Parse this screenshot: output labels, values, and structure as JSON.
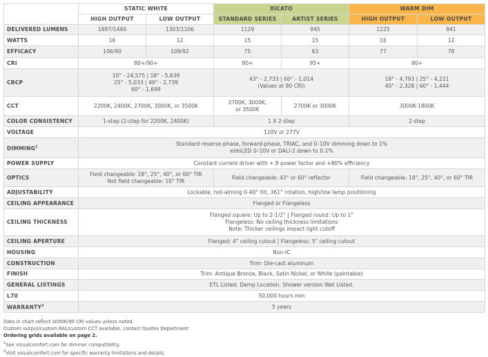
{
  "header": {
    "groups": [
      {
        "label": "STATIC WHITE",
        "color": "#ffffff"
      },
      {
        "label": "XICATO",
        "color": "#c9d48e"
      },
      {
        "label": "WARM DIM",
        "color": "#f9b54a"
      }
    ],
    "subcolumns": [
      "HIGH OUTPUT",
      "LOW OUTPUT",
      "STANDARD SERIES",
      "ARTIST SERIES",
      "HIGH OUTPUT",
      "LOW OUTPUT"
    ]
  },
  "rows": [
    {
      "label": "DELIVERED LUMENS",
      "cells": [
        {
          "t": "1697/1440",
          "s": 1
        },
        {
          "t": "1303/1106",
          "s": 1
        },
        {
          "t": "1129",
          "s": 1
        },
        {
          "t": "945",
          "s": 1
        },
        {
          "t": "1225",
          "s": 1
        },
        {
          "t": "941",
          "s": 1
        }
      ]
    },
    {
      "label": "WATTS",
      "cells": [
        {
          "t": "16",
          "s": 1
        },
        {
          "t": "12",
          "s": 1
        },
        {
          "t": "15",
          "s": 1
        },
        {
          "t": "15",
          "s": 1
        },
        {
          "t": "16",
          "s": 1
        },
        {
          "t": "12",
          "s": 1
        }
      ]
    },
    {
      "label": "EFFICACY",
      "cells": [
        {
          "t": "106/90",
          "s": 1
        },
        {
          "t": "109/92",
          "s": 1
        },
        {
          "t": "75",
          "s": 1
        },
        {
          "t": "63",
          "s": 1
        },
        {
          "t": "77",
          "s": 1
        },
        {
          "t": "78",
          "s": 1
        }
      ]
    },
    {
      "label": "CRI",
      "cells": [
        {
          "t": "80+/90+",
          "s": 2
        },
        {
          "t": "80+",
          "s": 1
        },
        {
          "t": "95+",
          "s": 1
        },
        {
          "t": "90+",
          "s": 2
        }
      ]
    },
    {
      "label": "CBCP",
      "cells": [
        {
          "t": "10° - 24,575 | 18° - 5,639\n25° - 5,033 | 40° - 2,739\n60° - 1,699",
          "s": 2
        },
        {
          "t": "43° - 2,733 | 60° - 1,014\n(Values at 80 CRI)",
          "s": 2
        },
        {
          "t": "18° - 4,793 | 25° - 4,221\n40° - 2,328 | 60° - 1,444",
          "s": 2
        }
      ]
    },
    {
      "label": "CCT",
      "cells": [
        {
          "t": "2200K, 2400K, 2700K, 3000K, or 3500K",
          "s": 2
        },
        {
          "t": "2700K, 3000K,\nor 3500K",
          "s": 1
        },
        {
          "t": "2700K or 3000K",
          "s": 1
        },
        {
          "t": "3000K-1800K",
          "s": 2
        }
      ]
    },
    {
      "label": "COLOR CONSISTENCY",
      "cells": [
        {
          "t": "1-step (2-step for 2200K, 2400K)",
          "s": 2
        },
        {
          "t": "1 X 2-step",
          "s": 2
        },
        {
          "t": "2-step",
          "s": 2
        }
      ]
    },
    {
      "label": "VOLTAGE",
      "cells": [
        {
          "t": "120V or 277V",
          "s": 6
        }
      ]
    },
    {
      "label": "DIMMING",
      "sup": "1",
      "cells": [
        {
          "t": "Standard reverse-phase, forward-phase, TRIAC, and 0–10V dimming down to 1%\neldoLED 0–10V or DALI-2 down to 0.1%",
          "s": 6
        }
      ]
    },
    {
      "label": "POWER SUPPLY",
      "cells": [
        {
          "t": "Constant current driver with +.9 power factor and +80% efficiency",
          "s": 6
        }
      ]
    },
    {
      "label": "OPTICS",
      "cells": [
        {
          "t": "Field changeable: 18°, 25°, 40°, or 60° TIR\nNot field changeable: 10° TIR",
          "s": 2
        },
        {
          "t": "Field changeable: 43° or 60° reflector",
          "s": 2
        },
        {
          "t": "Field changeable: 18°, 25°, 40°, or 60° TIR",
          "s": 2
        }
      ]
    },
    {
      "label": "ADJUSTABILITY",
      "cells": [
        {
          "t": "Lockable, hot-aiming 0-40° tilt, 361° rotation, high/low lamp positioning",
          "s": 6
        }
      ]
    },
    {
      "label": "CEILING APPEARANCE",
      "cells": [
        {
          "t": "Flanged or Flangeless",
          "s": 6
        }
      ]
    },
    {
      "label": "CEILING THICKNESS",
      "cells": [
        {
          "t": "Flanged square: Up to 2-1/2\" | Flanged round: Up to 1\"\nFlangeless: No ceiling thickness limitations\nNote: Thicker ceilings impact light cutoff",
          "s": 6
        }
      ]
    },
    {
      "label": "CEILING APERTURE",
      "cells": [
        {
          "t": "Flanged: 4\" ceiling cutout | Flangeless: 5\" ceiling cutout",
          "s": 6
        }
      ]
    },
    {
      "label": "HOUSING",
      "cells": [
        {
          "t": "Non-IC",
          "s": 6
        }
      ]
    },
    {
      "label": "CONSTRUCTION",
      "cells": [
        {
          "t": "Trim: Die-cast aluminum",
          "s": 6
        }
      ]
    },
    {
      "label": "FINISH",
      "cells": [
        {
          "t": "Trim: Antique Bronze, Black, Satin Nickel, or White (paintable)",
          "s": 6
        }
      ]
    },
    {
      "label": "GENERAL LISTINGS",
      "cells": [
        {
          "t": "ETL Listed. Damp Location. Shower version Wet Listed.",
          "s": 6
        }
      ]
    },
    {
      "label": "L70",
      "cells": [
        {
          "t": "50,000 hours min",
          "s": 6
        }
      ]
    },
    {
      "label": "WARRANTY",
      "sup": "2",
      "cells": [
        {
          "t": "5 years",
          "s": 6
        }
      ]
    }
  ],
  "notes": [
    {
      "text": "Data in chart reflect 3000K/90 CRI values unless noted.",
      "bold": false
    },
    {
      "text": "Custom output/custom RAL/custom CCT available, contact Quotes Department",
      "bold": false
    },
    {
      "text": "Ordering grids available on page 2.",
      "bold": true
    },
    {
      "sup": "1",
      "text": "See visualcomfort.com for dimmer compatibility.",
      "bold": false
    },
    {
      "sup": "2",
      "text": "Visit visualcomfort.com for specific warranty limitations and details.",
      "bold": false
    }
  ]
}
